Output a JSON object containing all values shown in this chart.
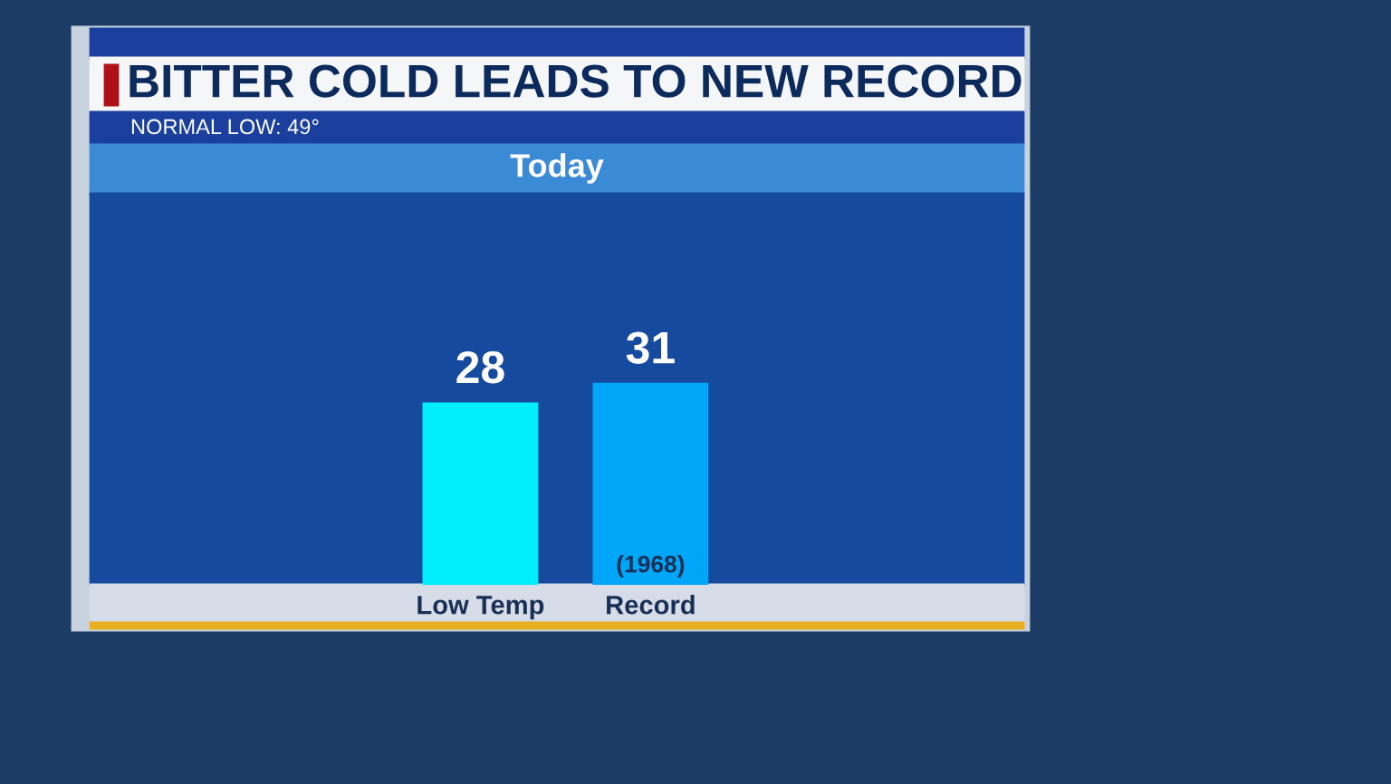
{
  "chart_data": {
    "type": "bar",
    "title": "BITTER COLD LEADS TO NEW RECORD",
    "subtitle": "NORMAL LOW: 49°",
    "annotations": [
      "Today",
      "(1968)"
    ],
    "categories": [
      "Low Temp",
      "Record"
    ],
    "values": [
      28,
      31
    ],
    "colors": [
      "#00eefc",
      "#00a6f8"
    ],
    "ylim": [
      0,
      60
    ],
    "data_labels": true,
    "tick_labels": "x",
    "grid": false,
    "legend": false
  }
}
